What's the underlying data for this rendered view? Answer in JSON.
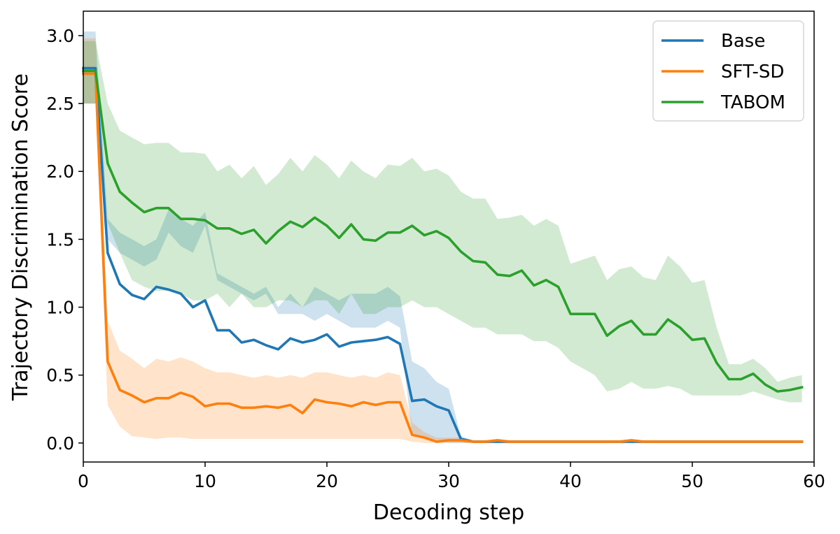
{
  "chart_data": {
    "type": "line",
    "xlabel": "Decoding step",
    "ylabel": "Trajectory Discrimination Score",
    "xlim": [
      0,
      60
    ],
    "ylim": [
      -0.14,
      3.18
    ],
    "xticks": [
      "0",
      "10",
      "20",
      "30",
      "40",
      "50",
      "60"
    ],
    "yticks": [
      "0.0",
      "0.5",
      "1.0",
      "1.5",
      "2.0",
      "2.5",
      "3.0"
    ],
    "grid": false,
    "legend_position": "top-right",
    "x": [
      0,
      1,
      2,
      3,
      4,
      5,
      6,
      7,
      8,
      9,
      10,
      11,
      12,
      13,
      14,
      15,
      16,
      17,
      18,
      19,
      20,
      21,
      22,
      23,
      24,
      25,
      26,
      27,
      28,
      29,
      30,
      31,
      32,
      33,
      34,
      35,
      36,
      37,
      38,
      39,
      40,
      41,
      42,
      43,
      44,
      45,
      46,
      47,
      48,
      49,
      50,
      51,
      52,
      53,
      54,
      55,
      56,
      57,
      58,
      59
    ],
    "series": [
      {
        "name": "Base",
        "color": "#1f77b4",
        "values": [
          2.76,
          2.76,
          1.4,
          1.17,
          1.09,
          1.06,
          1.15,
          1.13,
          1.1,
          1.0,
          1.05,
          0.83,
          0.83,
          0.74,
          0.76,
          0.72,
          0.69,
          0.77,
          0.74,
          0.76,
          0.8,
          0.71,
          0.74,
          0.75,
          0.76,
          0.78,
          0.73,
          0.31,
          0.32,
          0.27,
          0.24,
          0.03,
          0.01,
          0.01,
          0.01,
          0.01,
          0.01,
          0.01,
          0.01,
          0.01,
          0.01,
          0.01,
          0.01,
          0.01,
          0.01,
          0.01,
          0.01,
          0.01,
          0.01,
          0.01,
          0.01,
          0.01,
          0.01,
          0.01,
          0.01,
          0.01,
          0.01,
          0.01,
          0.01,
          0.01
        ],
        "lower": [
          2.5,
          2.5,
          1.5,
          1.4,
          1.35,
          1.3,
          1.35,
          1.55,
          1.45,
          1.4,
          1.6,
          1.2,
          1.15,
          1.1,
          1.05,
          1.1,
          0.95,
          0.95,
          0.95,
          0.9,
          0.95,
          0.9,
          0.85,
          0.85,
          0.85,
          0.9,
          0.85,
          0.05,
          0.05,
          0.01,
          0.0,
          0.0,
          0.0,
          0.0,
          0.0,
          0.0,
          0.0,
          0.0,
          0.0,
          0.0,
          0.0,
          0.0,
          0.0,
          0.0,
          0.0,
          0.0,
          0.0,
          0.0,
          0.0,
          0.0,
          0.0,
          0.0,
          0.0,
          0.0,
          0.0,
          0.0,
          0.0,
          0.0,
          0.0,
          0.0
        ],
        "upper": [
          3.03,
          3.03,
          1.65,
          1.55,
          1.5,
          1.45,
          1.5,
          1.72,
          1.65,
          1.6,
          1.7,
          1.25,
          1.2,
          1.15,
          1.1,
          1.15,
          1.0,
          1.1,
          1.0,
          1.15,
          1.1,
          1.05,
          1.1,
          1.1,
          1.1,
          1.15,
          1.08,
          0.6,
          0.55,
          0.45,
          0.4,
          0.05,
          0.02,
          0.02,
          0.02,
          0.02,
          0.02,
          0.02,
          0.02,
          0.02,
          0.02,
          0.02,
          0.02,
          0.02,
          0.02,
          0.02,
          0.02,
          0.02,
          0.02,
          0.02,
          0.02,
          0.02,
          0.02,
          0.02,
          0.02,
          0.02,
          0.02,
          0.02,
          0.02,
          0.02
        ]
      },
      {
        "name": "SFT-SD",
        "color": "#ff7f0e",
        "values": [
          2.72,
          2.72,
          0.6,
          0.39,
          0.35,
          0.3,
          0.33,
          0.33,
          0.37,
          0.34,
          0.27,
          0.29,
          0.29,
          0.26,
          0.26,
          0.27,
          0.26,
          0.28,
          0.22,
          0.32,
          0.3,
          0.29,
          0.27,
          0.3,
          0.28,
          0.3,
          0.3,
          0.06,
          0.04,
          0.01,
          0.02,
          0.02,
          0.01,
          0.01,
          0.02,
          0.01,
          0.01,
          0.01,
          0.01,
          0.01,
          0.01,
          0.01,
          0.01,
          0.01,
          0.01,
          0.02,
          0.01,
          0.01,
          0.01,
          0.01,
          0.01,
          0.01,
          0.01,
          0.01,
          0.01,
          0.01,
          0.01,
          0.01,
          0.01,
          0.01
        ],
        "lower": [
          2.5,
          2.5,
          0.28,
          0.12,
          0.05,
          0.04,
          0.03,
          0.04,
          0.04,
          0.03,
          0.03,
          0.03,
          0.03,
          0.03,
          0.03,
          0.03,
          0.03,
          0.03,
          0.03,
          0.03,
          0.03,
          0.03,
          0.03,
          0.03,
          0.03,
          0.03,
          0.03,
          0.01,
          0.0,
          0.0,
          0.0,
          0.0,
          0.0,
          0.0,
          0.0,
          0.0,
          0.0,
          0.0,
          0.0,
          0.0,
          0.0,
          0.0,
          0.0,
          0.0,
          0.0,
          0.0,
          0.0,
          0.0,
          0.0,
          0.0,
          0.0,
          0.0,
          0.0,
          0.0,
          0.0,
          0.0,
          0.0,
          0.0,
          0.0,
          0.0
        ],
        "upper": [
          2.98,
          2.98,
          0.9,
          0.68,
          0.62,
          0.55,
          0.62,
          0.6,
          0.63,
          0.6,
          0.55,
          0.52,
          0.52,
          0.5,
          0.48,
          0.5,
          0.48,
          0.5,
          0.48,
          0.52,
          0.52,
          0.5,
          0.48,
          0.5,
          0.48,
          0.52,
          0.5,
          0.15,
          0.08,
          0.04,
          0.04,
          0.04,
          0.02,
          0.02,
          0.03,
          0.02,
          0.02,
          0.02,
          0.02,
          0.02,
          0.02,
          0.02,
          0.02,
          0.02,
          0.02,
          0.03,
          0.02,
          0.02,
          0.02,
          0.02,
          0.02,
          0.02,
          0.02,
          0.02,
          0.02,
          0.02,
          0.02,
          0.02,
          0.02,
          0.02
        ]
      },
      {
        "name": "TABOM",
        "color": "#2ca02c",
        "values": [
          2.74,
          2.74,
          2.06,
          1.85,
          1.77,
          1.7,
          1.73,
          1.73,
          1.65,
          1.65,
          1.64,
          1.58,
          1.58,
          1.54,
          1.57,
          1.47,
          1.56,
          1.63,
          1.59,
          1.66,
          1.6,
          1.51,
          1.61,
          1.5,
          1.49,
          1.55,
          1.55,
          1.6,
          1.53,
          1.56,
          1.51,
          1.41,
          1.34,
          1.33,
          1.24,
          1.23,
          1.27,
          1.16,
          1.2,
          1.15,
          0.95,
          0.95,
          0.95,
          0.79,
          0.86,
          0.9,
          0.8,
          0.8,
          0.91,
          0.85,
          0.76,
          0.77,
          0.59,
          0.47,
          0.47,
          0.51,
          0.43,
          0.38,
          0.39,
          0.41
        ],
        "lower": [
          2.5,
          2.5,
          1.62,
          1.4,
          1.2,
          1.15,
          1.12,
          1.12,
          1.1,
          1.05,
          1.05,
          1.1,
          1.0,
          1.1,
          1.0,
          1.0,
          1.05,
          1.05,
          1.0,
          1.05,
          1.05,
          0.95,
          1.1,
          0.95,
          0.95,
          1.0,
          1.0,
          1.05,
          1.0,
          1.0,
          0.95,
          0.9,
          0.85,
          0.85,
          0.8,
          0.8,
          0.8,
          0.75,
          0.75,
          0.7,
          0.6,
          0.55,
          0.5,
          0.38,
          0.4,
          0.45,
          0.4,
          0.4,
          0.42,
          0.4,
          0.35,
          0.35,
          0.35,
          0.35,
          0.35,
          0.38,
          0.35,
          0.32,
          0.3,
          0.3
        ],
        "upper": [
          2.96,
          2.96,
          2.5,
          2.3,
          2.25,
          2.2,
          2.21,
          2.21,
          2.14,
          2.14,
          2.13,
          2.0,
          2.05,
          1.95,
          2.04,
          1.9,
          1.98,
          2.1,
          2.0,
          2.12,
          2.05,
          1.95,
          2.08,
          2.0,
          1.95,
          2.05,
          2.04,
          2.1,
          2.0,
          2.02,
          1.97,
          1.85,
          1.8,
          1.8,
          1.65,
          1.66,
          1.68,
          1.6,
          1.65,
          1.6,
          1.32,
          1.35,
          1.38,
          1.2,
          1.28,
          1.3,
          1.22,
          1.2,
          1.38,
          1.3,
          1.18,
          1.2,
          0.85,
          0.58,
          0.58,
          0.62,
          0.55,
          0.45,
          0.48,
          0.5
        ]
      }
    ]
  }
}
